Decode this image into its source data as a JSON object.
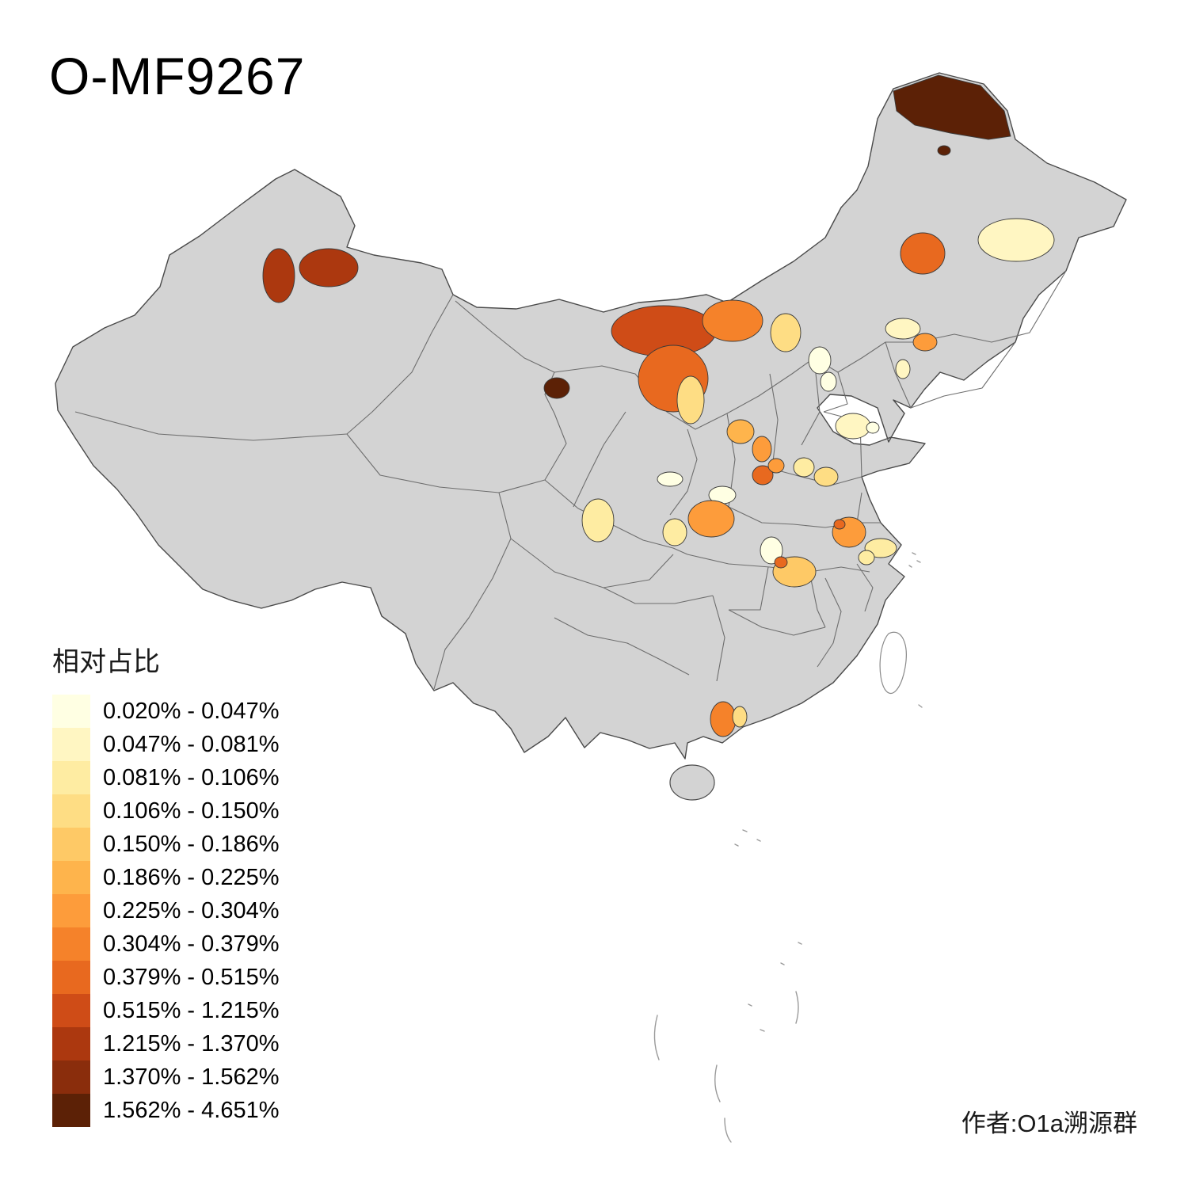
{
  "title": "O-MF9267",
  "author_credit": "作者:O1a溯源群",
  "legend": {
    "title": "相对占比",
    "classes": [
      {
        "range": "0.020% - 0.047%",
        "color": "#FFFFE3"
      },
      {
        "range": "0.047% - 0.081%",
        "color": "#FFF6C2"
      },
      {
        "range": "0.081% - 0.106%",
        "color": "#FEECA2"
      },
      {
        "range": "0.106% - 0.150%",
        "color": "#FEDD84"
      },
      {
        "range": "0.150% - 0.186%",
        "color": "#FEC966"
      },
      {
        "range": "0.186% - 0.225%",
        "color": "#FEB44C"
      },
      {
        "range": "0.225% - 0.304%",
        "color": "#FD9C3B"
      },
      {
        "range": "0.304% - 0.379%",
        "color": "#F5822A"
      },
      {
        "range": "0.379% - 0.515%",
        "color": "#E8691F"
      },
      {
        "range": "0.515% - 1.215%",
        "color": "#CF4C17"
      },
      {
        "range": "1.215% - 1.370%",
        "color": "#AC380F"
      },
      {
        "range": "1.370% - 1.562%",
        "color": "#8A2D0C"
      },
      {
        "range": "1.562% - 4.651%",
        "color": "#5C2106"
      }
    ]
  },
  "map": {
    "base_fill": "#D3D3D3",
    "border_color": "#4A4A4A",
    "island_fill": "#FFFFFF"
  }
}
